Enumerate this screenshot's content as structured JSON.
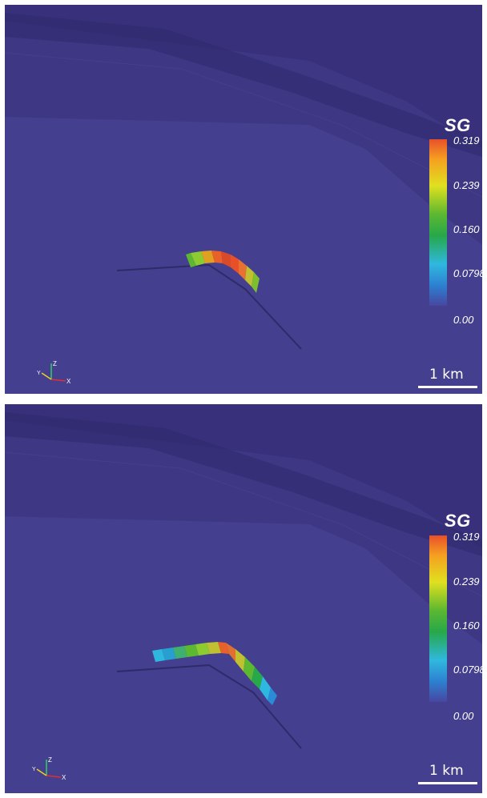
{
  "panels": [
    {
      "colorbar": {
        "title": "SG",
        "ticks": [
          "0.319",
          "0.239",
          "0.160",
          "0.0798",
          "0.00"
        ]
      },
      "scale": {
        "label": "1 km"
      },
      "axes": {
        "labels": [
          "Y",
          "Z",
          "X"
        ]
      }
    },
    {
      "colorbar": {
        "title": "SG",
        "ticks": [
          "0.319",
          "0.239",
          "0.160",
          "0.0798",
          "0.00"
        ]
      },
      "scale": {
        "label": "1 km"
      },
      "axes": {
        "labels": [
          "Y",
          "Z",
          "X"
        ]
      }
    }
  ],
  "colors": {
    "background": "#443f8e",
    "colormap": [
      "#4646a0",
      "#2fb8df",
      "#27a84a",
      "#e0e020",
      "#f57d21",
      "#e8502a"
    ]
  }
}
